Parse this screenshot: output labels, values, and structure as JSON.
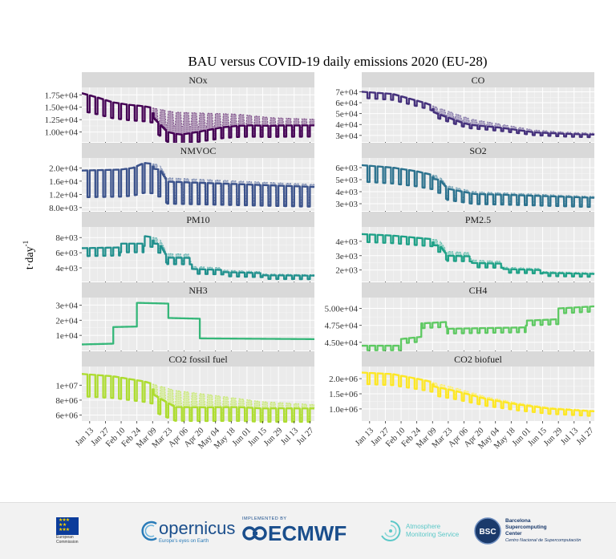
{
  "figure": {
    "title": "BAU versus COVID-19 daily emissions 2020 (EU-28)",
    "ylabel_main": "t·day",
    "ylabel_sup": "-1"
  },
  "footer": {
    "ec_line1": "European",
    "ec_line2": "Commission",
    "copernicus_name": "opernicus",
    "copernicus_tagline": "Europe's eyes on Earth",
    "ecmwf_top": "IMPLEMENTED BY",
    "ecmwf_name": "ECMWF",
    "cams_line1": "Atmosphere",
    "cams_line2": "Monitoring Service",
    "bsc_badge": "BSC",
    "bsc_line1": "Barcelona",
    "bsc_line2": "Supercomputing",
    "bsc_line3": "Center",
    "bsc_line4": "Centro Nacional de Supercomputación"
  },
  "chart_data": {
    "type": "line",
    "title": "BAU versus COVID-19 daily emissions 2020 (EU-28)",
    "ylabel": "t·day-1",
    "x_range": [
      "2020-01-06",
      "2020-07-31"
    ],
    "x_ticks": [
      "Jan 13",
      "Jan 27",
      "Feb 10",
      "Feb 24",
      "Mar 09",
      "Mar 23",
      "Apr 06",
      "Apr 20",
      "May 04",
      "May 18",
      "Jun 01",
      "Jun 15",
      "Jun 29",
      "Jul 13",
      "Jul 27"
    ],
    "lockdown_start": "2020-03-09",
    "series_names": [
      "BAU",
      "COVID-19"
    ],
    "panels": [
      {
        "name": "NOx",
        "color": "#440154",
        "ylim": [
          8000,
          19000
        ],
        "y_ticks": [
          10000,
          12500,
          15000,
          17500
        ],
        "y_tick_labels": [
          "1.00e+04",
          "1.25e+04",
          "1.50e+04",
          "1.75e+04"
        ],
        "weekday_profile": [
          [
            0,
            17800
          ],
          [
            13,
            17000
          ],
          [
            27,
            16000
          ],
          [
            41,
            15500
          ],
          [
            55,
            15200
          ],
          [
            83,
            14000
          ],
          [
            139,
            13600
          ],
          [
            168,
            12900
          ],
          [
            206,
            12600
          ]
        ],
        "weekend_factor": 0.8,
        "reduction": [
          [
            0,
            1
          ],
          [
            62,
            1
          ],
          [
            64,
            0.86
          ],
          [
            76,
            0.7
          ],
          [
            88,
            0.68
          ],
          [
            102,
            0.72
          ],
          [
            125,
            0.8
          ],
          [
            150,
            0.85
          ],
          [
            175,
            0.88
          ],
          [
            206,
            0.9
          ]
        ]
      },
      {
        "name": "CO",
        "color": "#45317c",
        "ylim": [
          24000,
          74000
        ],
        "y_ticks": [
          30000,
          40000,
          50000,
          60000,
          70000
        ],
        "y_tick_labels": [
          "3e+04",
          "4e+04",
          "5e+04",
          "6e+04",
          "7e+04"
        ],
        "weekday_profile": [
          [
            0,
            70000
          ],
          [
            27,
            68000
          ],
          [
            55,
            60000
          ],
          [
            69,
            55000
          ],
          [
            97,
            45000
          ],
          [
            125,
            40000
          ],
          [
            153,
            35000
          ],
          [
            181,
            33000
          ],
          [
            206,
            32000
          ]
        ],
        "weekend_factor": 0.92,
        "reduction": [
          [
            0,
            1
          ],
          [
            62,
            1
          ],
          [
            64,
            0.9
          ],
          [
            90,
            0.87
          ],
          [
            125,
            0.92
          ],
          [
            175,
            0.95
          ],
          [
            206,
            0.96
          ]
        ]
      },
      {
        "name": "NMVOC",
        "color": "#3b528b",
        "ylim": [
          7000,
          23000
        ],
        "y_ticks": [
          8000,
          12000,
          16000,
          20000
        ],
        "y_tick_labels": [
          "8.0e+03",
          "1.2e+04",
          "1.6e+04",
          "2.0e+04"
        ],
        "weekday_profile": [
          [
            0,
            19200
          ],
          [
            34,
            19500
          ],
          [
            45,
            20000
          ],
          [
            55,
            21500
          ],
          [
            69,
            21000
          ],
          [
            76,
            17000
          ],
          [
            206,
            15000
          ]
        ],
        "weekend_factor": 0.58,
        "reduction": [
          [
            0,
            1
          ],
          [
            62,
            1
          ],
          [
            64,
            0.93
          ],
          [
            206,
            0.95
          ]
        ]
      },
      {
        "name": "SO2",
        "color": "#2c728e",
        "ylim": [
          2400,
          6800
        ],
        "y_ticks": [
          3000,
          4000,
          5000,
          6000
        ],
        "y_tick_labels": [
          "3e+03",
          "4e+03",
          "5e+03",
          "6e+03"
        ],
        "weekday_profile": [
          [
            0,
            6200
          ],
          [
            27,
            6000
          ],
          [
            48,
            5700
          ],
          [
            62,
            5400
          ],
          [
            69,
            5300
          ],
          [
            76,
            4500
          ],
          [
            100,
            4000
          ],
          [
            206,
            3600
          ]
        ],
        "weekend_factor": 0.78,
        "reduction": [
          [
            0,
            1
          ],
          [
            62,
            1
          ],
          [
            64,
            0.94
          ],
          [
            125,
            0.96
          ],
          [
            206,
            0.97
          ]
        ]
      },
      {
        "name": "PM10",
        "color": "#21908d",
        "ylim": [
          2200,
          9400
        ],
        "y_ticks": [
          4000,
          6000,
          8000
        ],
        "y_tick_labels": [
          "4e+03",
          "6e+03",
          "8e+03"
        ],
        "weekday_profile": [
          [
            0,
            6600
          ],
          [
            33,
            6700
          ],
          [
            34,
            7200
          ],
          [
            54,
            7200
          ],
          [
            55,
            8200
          ],
          [
            69,
            7900
          ],
          [
            76,
            5900
          ],
          [
            97,
            5800
          ],
          [
            98,
            4200
          ],
          [
            125,
            4000
          ],
          [
            126,
            3700
          ],
          [
            160,
            3500
          ],
          [
            161,
            3200
          ],
          [
            206,
            3100
          ]
        ],
        "weekend_factor": 0.84,
        "reduction": [
          [
            0,
            1
          ],
          [
            62,
            1
          ],
          [
            64,
            0.9
          ],
          [
            125,
            0.93
          ],
          [
            206,
            0.96
          ]
        ]
      },
      {
        "name": "PM2.5",
        "color": "#1fa187",
        "ylim": [
          1200,
          5000
        ],
        "y_ticks": [
          2000,
          3000,
          4000
        ],
        "y_tick_labels": [
          "2e+03",
          "3e+03",
          "4e+03"
        ],
        "weekday_profile": [
          [
            0,
            4500
          ],
          [
            27,
            4400
          ],
          [
            55,
            4200
          ],
          [
            69,
            4100
          ],
          [
            76,
            3300
          ],
          [
            97,
            3200
          ],
          [
            98,
            2700
          ],
          [
            125,
            2600
          ],
          [
            126,
            2200
          ],
          [
            160,
            2100
          ],
          [
            161,
            1900
          ],
          [
            206,
            1800
          ]
        ],
        "weekend_factor": 0.88,
        "reduction": [
          [
            0,
            1
          ],
          [
            62,
            1
          ],
          [
            64,
            0.9
          ],
          [
            125,
            0.94
          ],
          [
            206,
            0.96
          ]
        ]
      },
      {
        "name": "NH3",
        "color": "#35b779",
        "ylim": [
          0,
          35000
        ],
        "y_ticks": [
          10000,
          20000,
          30000
        ],
        "y_tick_labels": [
          "1e+04",
          "2e+04",
          "3e+04"
        ],
        "weekday_profile": [
          [
            0,
            4000
          ],
          [
            27,
            4500
          ],
          [
            28,
            15500
          ],
          [
            48,
            15800
          ],
          [
            49,
            31500
          ],
          [
            76,
            31000
          ],
          [
            77,
            21500
          ],
          [
            104,
            21000
          ],
          [
            105,
            8000
          ],
          [
            206,
            7500
          ]
        ],
        "weekend_factor": 1.0,
        "reduction": [
          [
            0,
            1
          ],
          [
            206,
            1
          ]
        ]
      },
      {
        "name": "CH4",
        "color": "#5ec962",
        "ylim": [
          43800,
          51600
        ],
        "y_ticks": [
          45000,
          47500,
          50000
        ],
        "y_tick_labels": [
          "4.50e+04",
          "4.75e+04",
          "5.00e+04"
        ],
        "weekday_profile": [
          [
            0,
            44500
          ],
          [
            34,
            44500
          ],
          [
            35,
            45500
          ],
          [
            52,
            45800
          ],
          [
            53,
            47800
          ],
          [
            75,
            48000
          ],
          [
            76,
            47000
          ],
          [
            145,
            47200
          ],
          [
            146,
            48200
          ],
          [
            174,
            48400
          ],
          [
            175,
            50000
          ],
          [
            206,
            50300
          ]
        ],
        "weekend_factor": 0.985,
        "reduction": [
          [
            0,
            1
          ],
          [
            206,
            1
          ]
        ]
      },
      {
        "name": "CO2 fossil fuel",
        "color": "#addc30",
        "ylim": [
          5200000,
          12500000
        ],
        "y_ticks": [
          6000000,
          8000000,
          10000000
        ],
        "y_tick_labels": [
          "6e+06",
          "8e+06",
          "1e+07"
        ],
        "weekday_profile": [
          [
            0,
            11500000
          ],
          [
            27,
            11200000
          ],
          [
            55,
            10500000
          ],
          [
            83,
            9300000
          ],
          [
            125,
            8500000
          ],
          [
            160,
            7800000
          ],
          [
            206,
            7400000
          ]
        ],
        "weekend_factor": 0.74,
        "reduction": [
          [
            0,
            1
          ],
          [
            62,
            1
          ],
          [
            64,
            0.86
          ],
          [
            83,
            0.76
          ],
          [
            110,
            0.8
          ],
          [
            140,
            0.86
          ],
          [
            175,
            0.9
          ],
          [
            206,
            0.93
          ]
        ]
      },
      {
        "name": "CO2 biofuel",
        "color": "#fde725",
        "ylim": [
          600000,
          2400000
        ],
        "y_ticks": [
          1000000,
          1500000,
          2000000
        ],
        "y_tick_labels": [
          "1.0e+06",
          "1.5e+06",
          "2.0e+06"
        ],
        "weekday_profile": [
          [
            0,
            2200000
          ],
          [
            27,
            2150000
          ],
          [
            55,
            1950000
          ],
          [
            83,
            1700000
          ],
          [
            111,
            1400000
          ],
          [
            139,
            1200000
          ],
          [
            167,
            1050000
          ],
          [
            206,
            950000
          ]
        ],
        "weekend_factor": 0.83,
        "reduction": [
          [
            0,
            1
          ],
          [
            62,
            1
          ],
          [
            64,
            0.93
          ],
          [
            125,
            0.95
          ],
          [
            206,
            0.97
          ]
        ]
      }
    ]
  }
}
